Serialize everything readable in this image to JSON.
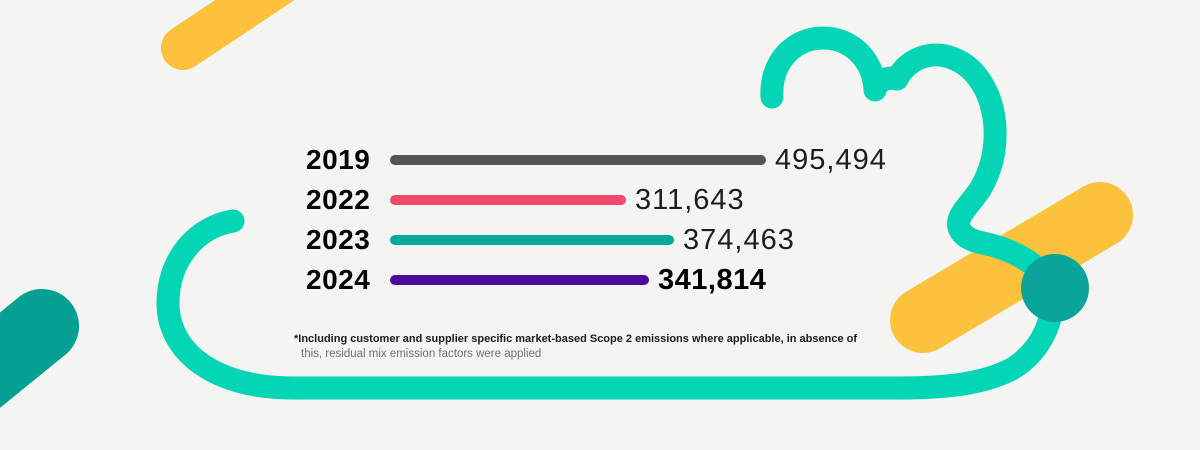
{
  "chart_data": {
    "type": "bar",
    "orientation": "horizontal",
    "categories": [
      "2019",
      "2022",
      "2023",
      "2024"
    ],
    "values": [
      495494,
      311643,
      374463,
      341814
    ],
    "value_labels": [
      "495,494",
      "311,643",
      "374,463",
      "341,814"
    ],
    "bar_colors": [
      "#545454",
      "#ef4a6e",
      "#05a89a",
      "#4c0b9b"
    ],
    "highlight_index": 3,
    "xlim": [
      0,
      495494
    ],
    "title": "",
    "legend": "none",
    "grid": "off",
    "footnote_line1": "*Including customer and supplier specific market-based Scope 2 emissions where applicable, in absence of",
    "footnote_line2": "this, residual mix emission factors were applied"
  },
  "decorations": {
    "background": "#f4f4f2",
    "mint": "#04d5b5",
    "dark_teal": "#05a094",
    "circle_teal": "#0ba49a",
    "yellow": "#fcc23d"
  }
}
